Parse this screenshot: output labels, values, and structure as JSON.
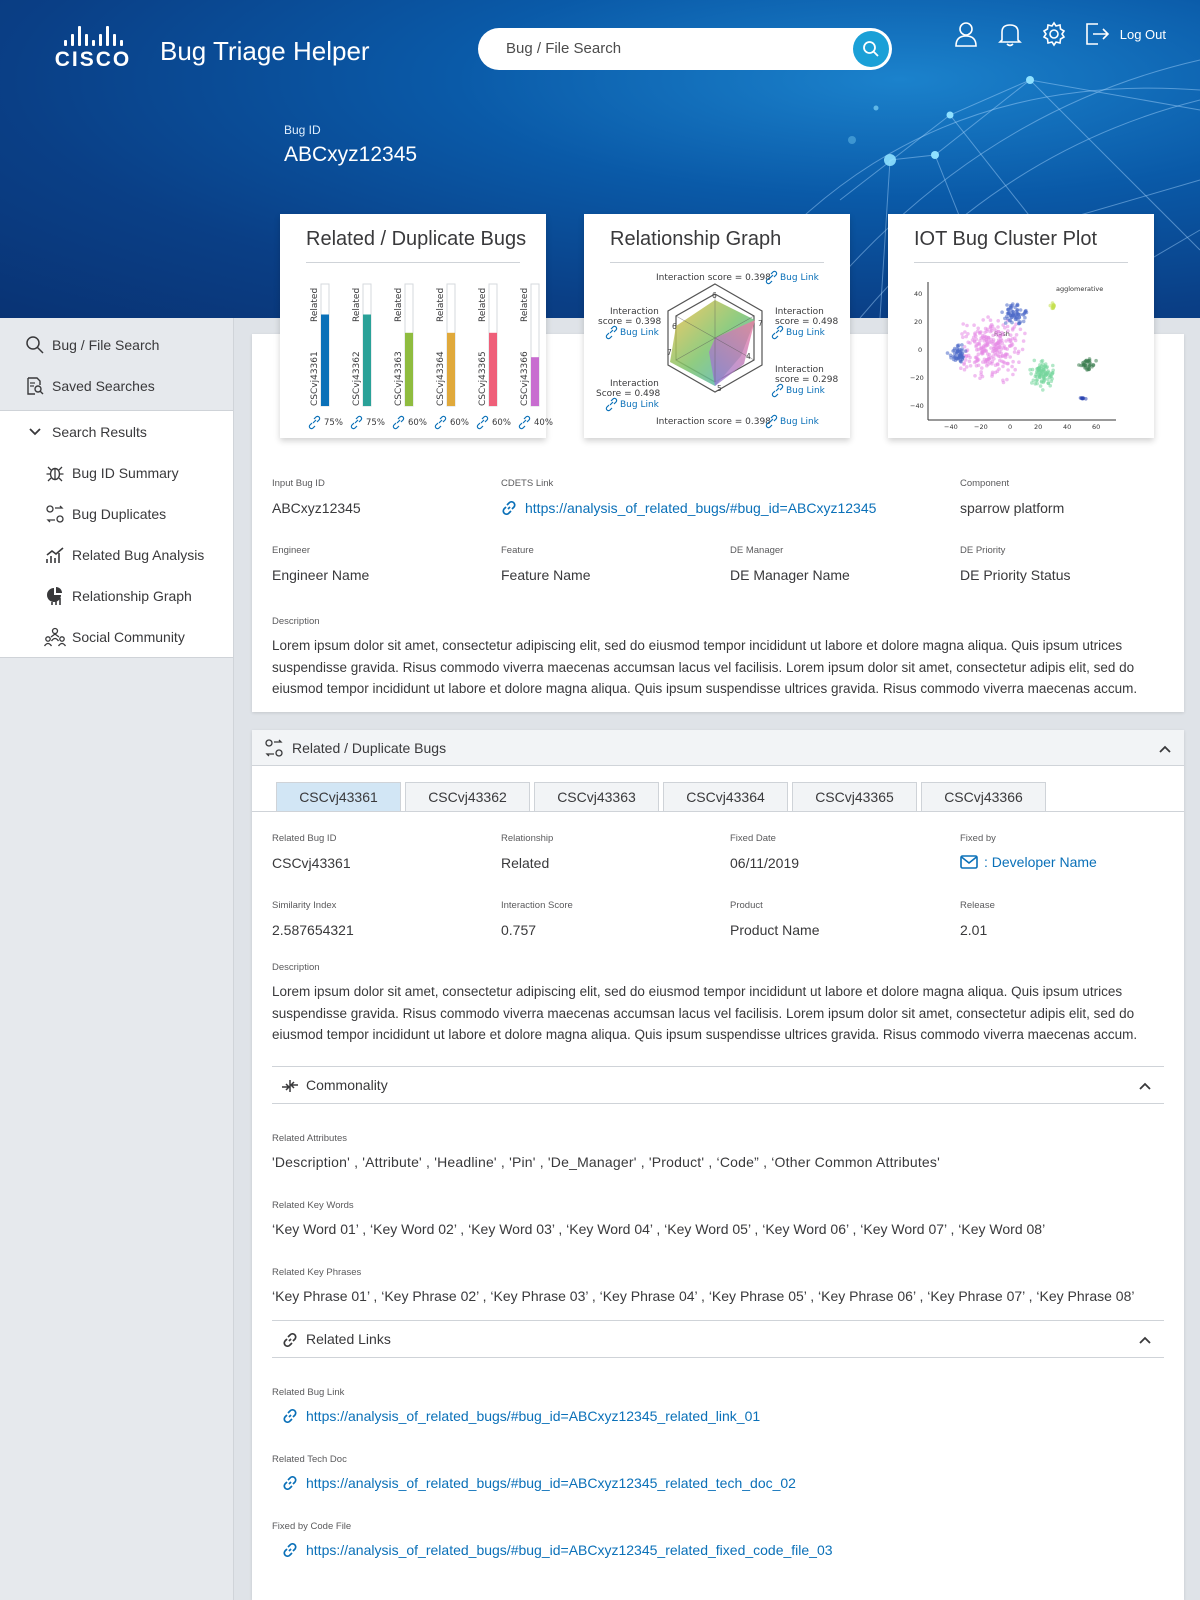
{
  "header": {
    "logo_text": "CISCO",
    "app_title": "Bug Triage Helper",
    "search_placeholder": "Bug / File Search",
    "logout_label": "Log Out",
    "bug_id_caption": "Bug ID",
    "bug_id_value": "ABCxyz12345"
  },
  "sidebar": {
    "top_items": [
      {
        "label": "Bug / File Search",
        "icon": "search-icon"
      },
      {
        "label": "Saved Searches",
        "icon": "saved-search-icon"
      }
    ],
    "group_label": "Search Results",
    "sub_items": [
      {
        "label": "Bug ID Summary",
        "icon": "bug-icon"
      },
      {
        "label": "Bug Duplicates",
        "icon": "duplicates-icon"
      },
      {
        "label": "Related Bug Analysis",
        "icon": "analysis-chart-icon"
      },
      {
        "label": "Relationship Graph",
        "icon": "graph-icon"
      },
      {
        "label": "Social Community",
        "icon": "community-icon"
      }
    ]
  },
  "cards": {
    "related": {
      "title": "Related / Duplicate Bugs",
      "bars": [
        {
          "id": "CSCvj43361",
          "tag": "Related",
          "pct_label": "75%",
          "fill": 0.75,
          "color": "#0a70b8"
        },
        {
          "id": "CSCvj43362",
          "tag": "Related",
          "pct_label": "75%",
          "fill": 0.75,
          "color": "#2aa198"
        },
        {
          "id": "CSCvj43363",
          "tag": "Related",
          "pct_label": "60%",
          "fill": 0.6,
          "color": "#8fbc3f"
        },
        {
          "id": "CSCvj43364",
          "tag": "Related",
          "pct_label": "60%",
          "fill": 0.6,
          "color": "#e0a93b"
        },
        {
          "id": "CSCvj43365",
          "tag": "Related",
          "pct_label": "60%",
          "fill": 0.6,
          "color": "#ef5f79"
        },
        {
          "id": "CSCvj43366",
          "tag": "Related",
          "pct_label": "40%",
          "fill": 0.4,
          "color": "#c86dd0"
        }
      ]
    },
    "graph": {
      "title": "Relationship Graph",
      "top": "Interaction score = 0.398",
      "bottom": "Interaction score = 0.398",
      "left_top_1": "Interaction",
      "left_top_2": "score = 0.398",
      "left_bot_1": "Interaction",
      "left_bot_2": "Score = 0.498",
      "right_top_1": "Interaction",
      "right_top_2": "score = 0.498",
      "right_bot_1": "Interaction",
      "right_bot_2": "score = 0.298",
      "link_label": "Bug Link",
      "node_numbers": [
        "6",
        "7",
        "4",
        "5",
        "7",
        "6"
      ]
    },
    "cluster": {
      "title": "IOT Bug Cluster Plot",
      "legend": "agglomerative",
      "label_a": "Rash",
      "y_ticks": [
        "40",
        "20",
        "0",
        "−20",
        "−40"
      ],
      "x_ticks": [
        "−40",
        "−20",
        "0",
        "20",
        "40",
        "60"
      ]
    }
  },
  "summary": {
    "fields": [
      {
        "label": "Input Bug ID",
        "value": "ABCxyz12345"
      },
      {
        "label": "CDETS Link",
        "value": "https://analysis_of_related_bugs/#bug_id=ABCxyz12345"
      },
      {
        "label": "Component",
        "value": "sparrow platform"
      },
      {
        "label": "Engineer",
        "value": "Engineer Name"
      },
      {
        "label": "Feature",
        "value": "Feature Name"
      },
      {
        "label": "DE Manager",
        "value": "DE Manager Name"
      },
      {
        "label": "DE Priority",
        "value": "DE Priority Status"
      }
    ],
    "description_label": "Description",
    "description": "Lorem ipsum dolor sit amet, consectetur adipiscing elit, sed do eiusmod tempor incididunt ut labore et dolore magna aliqua. Quis ipsum utrices suspendisse gravida. Risus commodo viverra maecenas accumsan lacus vel facilisis. Lorem ipsum dolor sit amet, consectetur adipis elit, sed do eiusmod tempor incididunt ut labore et dolore magna aliqua. Quis ipsum suspendisse ultrices gravida. Risus commodo viverra maecenas accum."
  },
  "duplicates": {
    "section_title": "Related / Duplicate Bugs",
    "tabs": [
      "CSCvj43361",
      "CSCvj43362",
      "CSCvj43363",
      "CSCvj43364",
      "CSCvj43365",
      "CSCvj43366"
    ],
    "fields": [
      {
        "label": "Related Bug ID",
        "value": "CSCvj43361"
      },
      {
        "label": "Relationship",
        "value": "Related"
      },
      {
        "label": "Fixed Date",
        "value": "06/11/2019"
      },
      {
        "label": "Fixed by",
        "value": ": Developer Name"
      },
      {
        "label": "Similarity Index",
        "value": "2.587654321"
      },
      {
        "label": "Interaction Score",
        "value": "0.757"
      },
      {
        "label": "Product",
        "value": "Product Name"
      },
      {
        "label": "Release",
        "value": "2.01"
      }
    ],
    "description_label": "Description",
    "description": "Lorem ipsum dolor sit amet, consectetur adipiscing elit, sed do eiusmod tempor incididunt ut labore et dolore magna aliqua. Quis ipsum utrices suspendisse gravida. Risus commodo viverra maecenas accumsan lacus vel facilisis. Lorem ipsum dolor sit amet, consectetur adipis elit, sed do eiusmod tempor incididunt ut labore et dolore magna aliqua. Quis ipsum suspendisse ultrices gravida. Risus commodo viverra maecenas accum.",
    "commonality": {
      "title": "Commonality",
      "attr_label": "Related Attributes",
      "attr_value": "'Description' , 'Attribute' , 'Headline' , 'Pin' , 'De_Manager' , 'Product' , ‘Code” ,  ‘Other Common Attributes'",
      "kw_label": "Related Key Words",
      "kw_value": "‘Key Word 01’ , ‘Key Word 02’ , ‘Key Word 03’ , ‘Key Word 04’ , ‘Key Word 05’ , ‘Key Word 06’ , ‘Key Word 07’ , ‘Key Word 08’",
      "kp_label": "Related Key Phrases",
      "kp_value": "‘Key Phrase 01’ , ‘Key Phrase 02’ , ‘Key Phrase 03’ , ‘Key Phrase 04’ , ‘Key Phrase 05’ , ‘Key Phrase 06’ , ‘Key Phrase 07’  , ‘Key Phrase 08’"
    },
    "links": {
      "title": "Related Links",
      "bug_link_label": "Related Bug Link",
      "bug_link": "https://analysis_of_related_bugs/#bug_id=ABCxyz12345_related_link_01",
      "tech_doc_label": "Related Tech Doc",
      "tech_doc": "https://analysis_of_related_bugs/#bug_id=ABCxyz12345_related_tech_doc_02",
      "code_label": "Fixed by Code File",
      "code_link": "https://analysis_of_related_bugs/#bug_id=ABCxyz12345_related_fixed_code_file_03"
    }
  },
  "colors": {
    "accent": "#0a70b8",
    "search_button": "#1ba0d7",
    "header_dark": "#093374"
  }
}
